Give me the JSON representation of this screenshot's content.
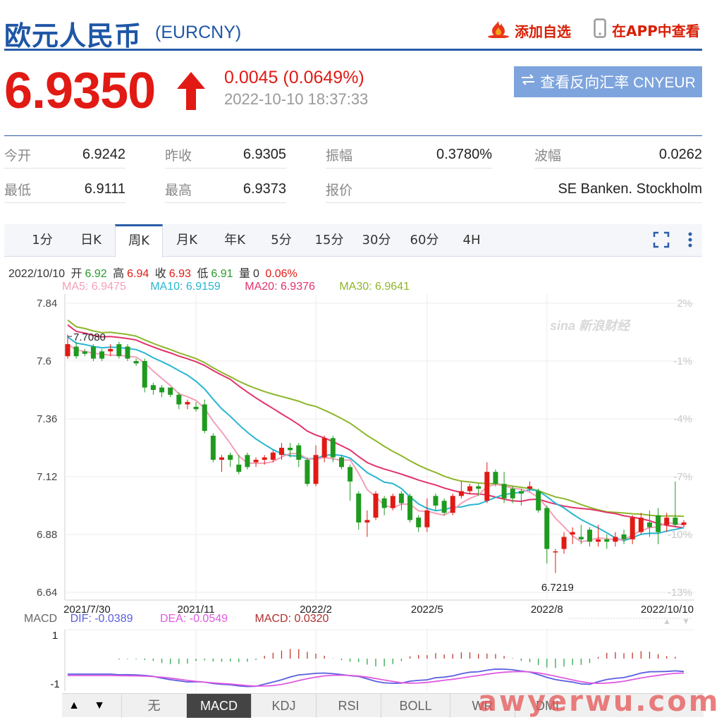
{
  "header": {
    "title": "欧元人民币",
    "code": "(EURCNY)",
    "add_label": "添加自选",
    "app_label": "在APP中查看"
  },
  "quote": {
    "price": "6.9350",
    "change": "0.0045 (0.0649%)",
    "time": "2022-10-10 18:37:33",
    "reverse_label": "查看反向汇率 CNYEUR",
    "up_color": "#e11a14"
  },
  "stats": [
    {
      "key": "今开",
      "value": "6.9242"
    },
    {
      "key": "昨收",
      "value": "6.9305"
    },
    {
      "key": "振幅",
      "value": "0.3780%"
    },
    {
      "key": "波幅",
      "value": "0.0262"
    },
    {
      "key": "最低",
      "value": "6.9111"
    },
    {
      "key": "最高",
      "value": "6.9373"
    },
    {
      "key": "报价",
      "value": "SE Banken. Stockholm"
    }
  ],
  "tabs": [
    "1分",
    "日K",
    "周K",
    "月K",
    "年K",
    "5分",
    "15分",
    "30分",
    "60分",
    "4H"
  ],
  "active_tab": "周K",
  "info": {
    "date": "2022/10/10",
    "open_label": "开",
    "open": "6.92",
    "high_label": "高",
    "high": "6.94",
    "close_label": "收",
    "close": "6.93",
    "low_label": "低",
    "low": "6.91",
    "vol_label": "量",
    "vol": "0",
    "pct": "0.06%"
  },
  "ma": [
    {
      "label": "MA5: 6.9475",
      "color": "#f4a0b8"
    },
    {
      "label": "MA10: 6.9159",
      "color": "#29b6d2"
    },
    {
      "label": "MA20: 6.9376",
      "color": "#e2336b"
    },
    {
      "label": "MA30: 6.9641",
      "color": "#8db62a"
    }
  ],
  "macd_info": [
    {
      "label": "MACD",
      "color": "#666666"
    },
    {
      "label": "DIF: -0.0389",
      "color": "#5a5ee0"
    },
    {
      "label": "DEA: -0.0549",
      "color": "#e05ae0"
    },
    {
      "label": "MACD: 0.0320",
      "color": "#b03030"
    }
  ],
  "bottom_tabs": [
    "无",
    "MACD",
    "KDJ",
    "RSI",
    "BOLL",
    "WR",
    "DMI"
  ],
  "active_bottom_tab": "MACD",
  "bottom_arrows": [
    "▲",
    "▼"
  ],
  "watermark": "awyerwu.com",
  "chart_data": {
    "type": "candlestick",
    "x_ticks": [
      "2021/7/30",
      "2021/11",
      "2022/2",
      "2022/5",
      "2022/8",
      "2022/10/10"
    ],
    "y_ticks": [
      "7.84",
      "7.6",
      "7.36",
      "7.12",
      "6.88",
      "6.64"
    ],
    "ylim": [
      6.64,
      7.84
    ],
    "pct_ticks": [
      "2%",
      "-1%",
      "-4%",
      "-7%",
      "-10%",
      "-13%"
    ],
    "annotations": [
      {
        "text": "7.7080",
        "x": "2021/7/30",
        "y": 7.708
      },
      {
        "text": "6.7219",
        "x": "2022/8",
        "y": 6.7219
      }
    ],
    "macd_y_ticks": [
      "1",
      "-1"
    ],
    "candles": [
      [
        7.62,
        7.67,
        7.61,
        7.71
      ],
      [
        7.66,
        7.62,
        7.61,
        7.68
      ],
      [
        7.64,
        7.63,
        7.62,
        7.65
      ],
      [
        7.66,
        7.61,
        7.6,
        7.67
      ],
      [
        7.64,
        7.61,
        7.6,
        7.65
      ],
      [
        7.64,
        7.65,
        7.62,
        7.67
      ],
      [
        7.67,
        7.62,
        7.61,
        7.68
      ],
      [
        7.66,
        7.61,
        7.6,
        7.67
      ],
      [
        7.6,
        7.59,
        7.58,
        7.61
      ],
      [
        7.6,
        7.49,
        7.47,
        7.61
      ],
      [
        7.5,
        7.48,
        7.46,
        7.51
      ],
      [
        7.49,
        7.47,
        7.45,
        7.5
      ],
      [
        7.49,
        7.46,
        7.45,
        7.49
      ],
      [
        7.46,
        7.42,
        7.4,
        7.47
      ],
      [
        7.42,
        7.43,
        7.4,
        7.44
      ],
      [
        7.41,
        7.4,
        7.39,
        7.43
      ],
      [
        7.42,
        7.31,
        7.3,
        7.44
      ],
      [
        7.29,
        7.19,
        7.18,
        7.3
      ],
      [
        7.19,
        7.2,
        7.14,
        7.21
      ],
      [
        7.21,
        7.19,
        7.16,
        7.22
      ],
      [
        7.17,
        7.14,
        7.13,
        7.21
      ],
      [
        7.21,
        7.16,
        7.15,
        7.22
      ],
      [
        7.18,
        7.19,
        7.16,
        7.2
      ],
      [
        7.19,
        7.2,
        7.17,
        7.21
      ],
      [
        7.19,
        7.22,
        7.18,
        7.23
      ],
      [
        7.21,
        7.24,
        7.19,
        7.26
      ],
      [
        7.24,
        7.23,
        7.2,
        7.26
      ],
      [
        7.25,
        7.19,
        7.16,
        7.26
      ],
      [
        7.19,
        7.09,
        7.08,
        7.2
      ],
      [
        7.09,
        7.21,
        7.08,
        7.25
      ],
      [
        7.2,
        7.28,
        7.18,
        7.29
      ],
      [
        7.28,
        7.2,
        7.18,
        7.29
      ],
      [
        7.2,
        7.16,
        7.15,
        7.21
      ],
      [
        7.16,
        7.1,
        7.02,
        7.17
      ],
      [
        7.05,
        6.93,
        6.9,
        7.06
      ],
      [
        6.93,
        6.94,
        6.87,
        6.98
      ],
      [
        6.95,
        7.05,
        6.94,
        7.06
      ],
      [
        7.03,
        6.99,
        6.96,
        7.04
      ],
      [
        6.99,
        7.04,
        6.98,
        7.05
      ],
      [
        7.05,
        7.01,
        6.98,
        7.06
      ],
      [
        7.04,
        6.94,
        6.93,
        7.05
      ],
      [
        6.95,
        6.91,
        6.89,
        6.96
      ],
      [
        6.91,
        6.98,
        6.89,
        7.03
      ],
      [
        7.04,
        7.0,
        6.98,
        7.05
      ],
      [
        7.02,
        6.97,
        6.96,
        7.03
      ],
      [
        6.97,
        7.04,
        6.96,
        7.05
      ],
      [
        7.04,
        7.06,
        7.03,
        7.1
      ],
      [
        7.06,
        7.08,
        7.05,
        7.09
      ],
      [
        7.08,
        7.07,
        7.04,
        7.09
      ],
      [
        7.02,
        7.14,
        7.01,
        7.18
      ],
      [
        7.14,
        7.09,
        7.08,
        7.15
      ],
      [
        7.09,
        7.03,
        7.01,
        7.14
      ],
      [
        7.07,
        7.03,
        7.01,
        7.08
      ],
      [
        7.06,
        7.05,
        7.0,
        7.07
      ],
      [
        7.07,
        7.08,
        7.06,
        7.1
      ],
      [
        7.06,
        6.98,
        6.97,
        7.07
      ],
      [
        6.99,
        6.82,
        6.76,
        7.0
      ],
      [
        6.81,
        6.81,
        6.72,
        6.82
      ],
      [
        6.82,
        6.87,
        6.8,
        6.89
      ],
      [
        6.88,
        6.89,
        6.84,
        6.91
      ],
      [
        6.87,
        6.86,
        6.84,
        6.92
      ],
      [
        6.9,
        6.85,
        6.83,
        6.91
      ],
      [
        6.85,
        6.86,
        6.83,
        6.92
      ],
      [
        6.86,
        6.85,
        6.82,
        6.88
      ],
      [
        6.85,
        6.87,
        6.83,
        6.89
      ],
      [
        6.88,
        6.86,
        6.84,
        6.9
      ],
      [
        6.86,
        6.95,
        6.84,
        6.96
      ],
      [
        6.89,
        6.95,
        6.88,
        6.97
      ],
      [
        6.93,
        6.91,
        6.87,
        6.98
      ],
      [
        6.96,
        6.89,
        6.84,
        6.99
      ],
      [
        6.92,
        6.95,
        6.89,
        6.97
      ],
      [
        6.95,
        6.92,
        6.91,
        7.1
      ],
      [
        6.92,
        6.93,
        6.91,
        6.94
      ]
    ]
  }
}
